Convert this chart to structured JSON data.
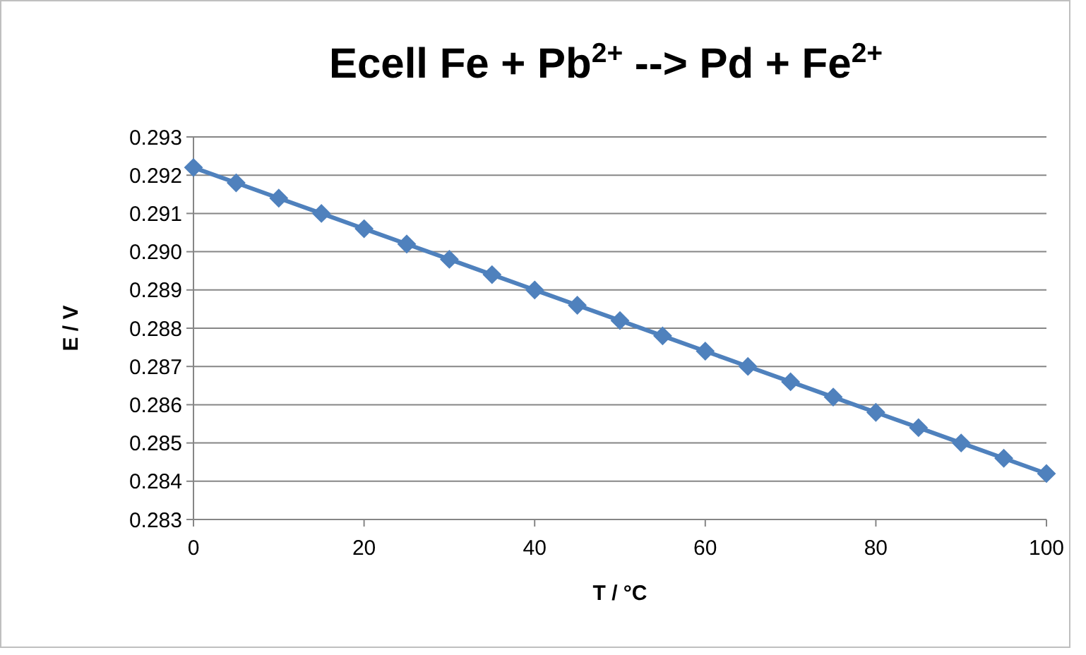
{
  "chart_data": {
    "type": "line",
    "title": "Ecell Fe + Pb$^{2+}$ --> Pd + Fe$^{2+}$",
    "xlabel": "T / °C",
    "ylabel": "E / V",
    "x": [
      0,
      5,
      10,
      15,
      20,
      25,
      30,
      35,
      40,
      45,
      50,
      55,
      60,
      65,
      70,
      75,
      80,
      85,
      90,
      95,
      100
    ],
    "series": [
      {
        "color": "#4f81bd",
        "values": [
          0.2922,
          0.2918,
          0.2914,
          0.291,
          0.2906,
          0.2902,
          0.2898,
          0.2894,
          0.289,
          0.2886,
          0.2882,
          0.2878,
          0.2874,
          0.287,
          0.2866,
          0.2862,
          0.2858,
          0.2854,
          0.285,
          0.2846,
          0.2842
        ]
      }
    ],
    "xlim": [
      0,
      100
    ],
    "xticks": [
      0,
      20,
      40,
      60,
      80,
      100
    ],
    "ylim": [
      0.283,
      0.293
    ],
    "yticks": [
      {
        "value": 0.283,
        "label": "0.283"
      },
      {
        "value": 0.284,
        "label": "0.284"
      },
      {
        "value": 0.285,
        "label": "0.285"
      },
      {
        "value": 0.286,
        "label": "0.286"
      },
      {
        "value": 0.287,
        "label": "0.287"
      },
      {
        "value": 0.288,
        "label": "0.288"
      },
      {
        "value": 0.289,
        "label": "0.289"
      },
      {
        "value": 0.29,
        "label": "0.290"
      },
      {
        "value": 0.291,
        "label": "0.291"
      },
      {
        "value": 0.292,
        "label": "0.292"
      },
      {
        "value": 0.293,
        "label": "0.293"
      }
    ],
    "grid": "y",
    "marker": "diamond",
    "line_style": "solid"
  }
}
